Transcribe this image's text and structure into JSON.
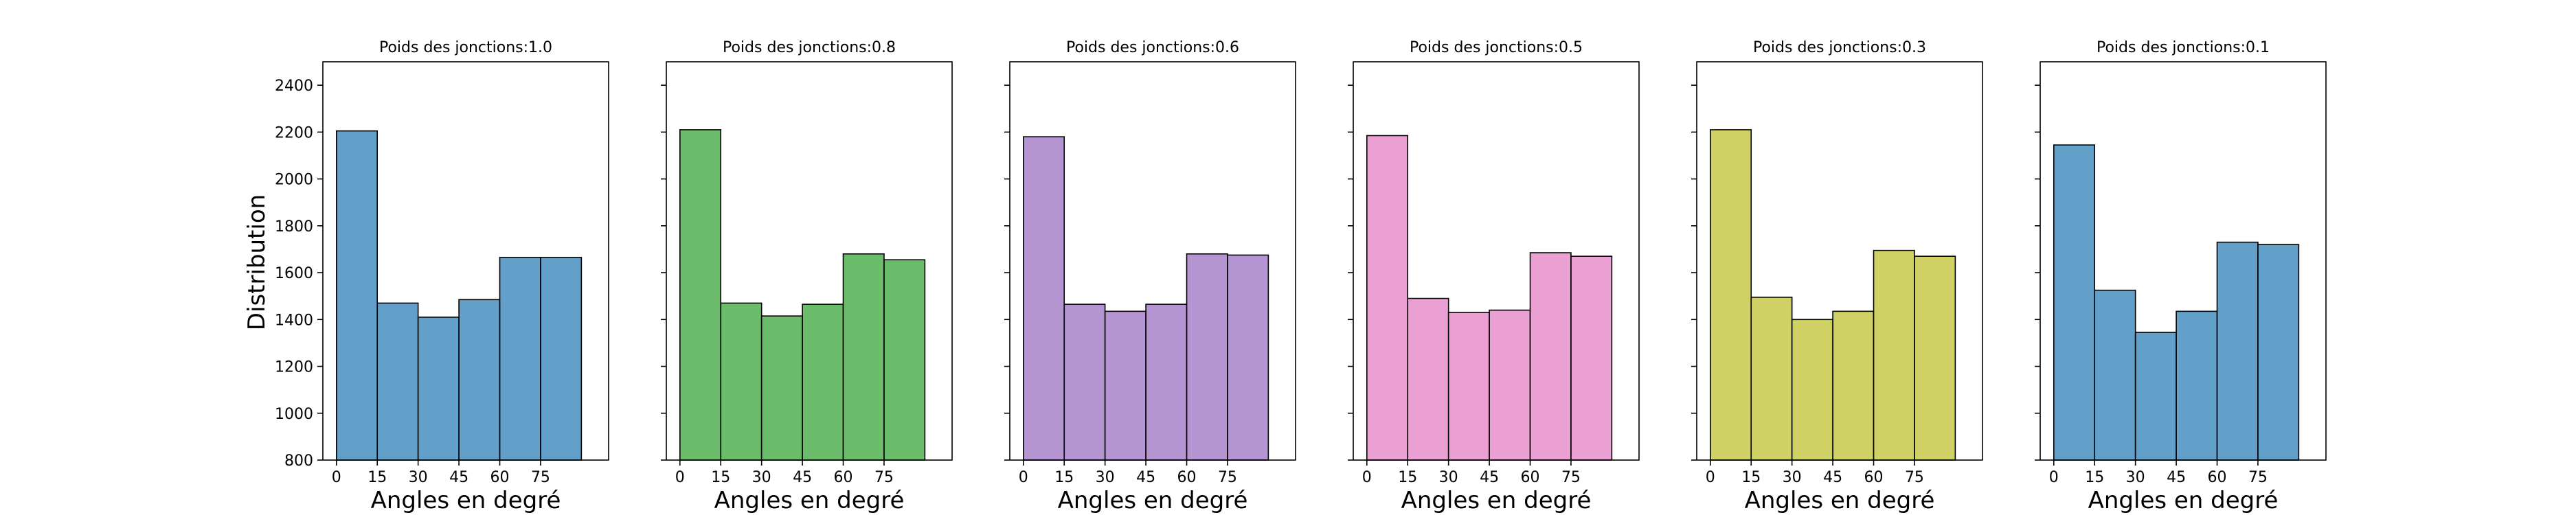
{
  "figure": {
    "ylabel": "Distribution"
  },
  "bin_edges": [
    0,
    15,
    30,
    45,
    60,
    75,
    90
  ],
  "x_ticks": [
    0,
    15,
    30,
    45,
    60,
    75
  ],
  "y_ticks": [
    800,
    1000,
    1200,
    1400,
    1600,
    1800,
    2000,
    2200,
    2400
  ],
  "chart_data": [
    {
      "type": "bar",
      "title": "Poids des jonctions:1.0",
      "xlabel": "Angles en degré",
      "ylabel": "Distribution",
      "categories": [
        "0-15",
        "15-30",
        "30-45",
        "45-60",
        "60-75",
        "75-90"
      ],
      "values": [
        2205,
        1470,
        1410,
        1485,
        1665,
        1665
      ],
      "ylim": [
        800,
        2500
      ],
      "color": "#1f77b4"
    },
    {
      "type": "bar",
      "title": "Poids des jonctions:0.8",
      "xlabel": "Angles en degré",
      "categories": [
        "0-15",
        "15-30",
        "30-45",
        "45-60",
        "60-75",
        "75-90"
      ],
      "values": [
        2210,
        1470,
        1415,
        1465,
        1680,
        1655
      ],
      "ylim": [
        800,
        2500
      ],
      "color": "#2ca02c"
    },
    {
      "type": "bar",
      "title": "Poids des jonctions:0.6",
      "xlabel": "Angles en degré",
      "categories": [
        "0-15",
        "15-30",
        "30-45",
        "45-60",
        "60-75",
        "75-90"
      ],
      "values": [
        2180,
        1465,
        1435,
        1465,
        1680,
        1675
      ],
      "ylim": [
        800,
        2500
      ],
      "color": "#9467bd"
    },
    {
      "type": "bar",
      "title": "Poids des jonctions:0.5",
      "xlabel": "Angles en degré",
      "categories": [
        "0-15",
        "15-30",
        "30-45",
        "45-60",
        "60-75",
        "75-90"
      ],
      "values": [
        2185,
        1490,
        1430,
        1440,
        1685,
        1670
      ],
      "ylim": [
        800,
        2500
      ],
      "color": "#e377c2"
    },
    {
      "type": "bar",
      "title": "Poids des jonctions:0.3",
      "xlabel": "Angles en degré",
      "categories": [
        "0-15",
        "15-30",
        "30-45",
        "45-60",
        "60-75",
        "75-90"
      ],
      "values": [
        2210,
        1495,
        1400,
        1435,
        1695,
        1670
      ],
      "ylim": [
        800,
        2500
      ],
      "color": "#bcbd22"
    },
    {
      "type": "bar",
      "title": "Poids des jonctions:0.1",
      "xlabel": "Angles en degré",
      "categories": [
        "0-15",
        "15-30",
        "30-45",
        "45-60",
        "60-75",
        "75-90"
      ],
      "values": [
        2145,
        1525,
        1345,
        1435,
        1730,
        1720
      ],
      "ylim": [
        800,
        2500
      ],
      "color": "#1f77b4"
    }
  ]
}
